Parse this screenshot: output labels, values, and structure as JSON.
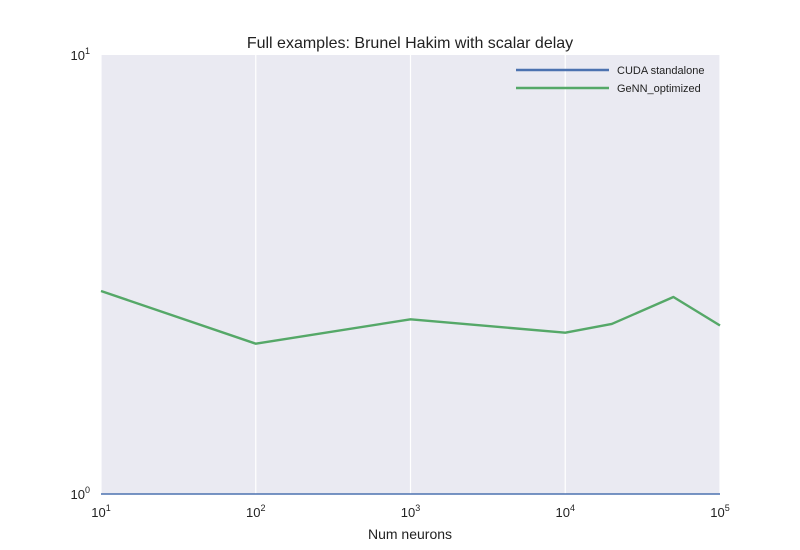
{
  "chart_data": {
    "type": "line",
    "title": "Full examples: Brunel Hakim with scalar delay",
    "xlabel": "Num neurons",
    "ylabel": "",
    "x_scale": "log",
    "y_scale": "log",
    "xlim": [
      10,
      100000
    ],
    "ylim": [
      1,
      10
    ],
    "x_ticks": [
      {
        "value": 10,
        "base": "10",
        "exp": "1"
      },
      {
        "value": 100,
        "base": "10",
        "exp": "2"
      },
      {
        "value": 1000,
        "base": "10",
        "exp": "3"
      },
      {
        "value": 10000,
        "base": "10",
        "exp": "4"
      },
      {
        "value": 100000,
        "base": "10",
        "exp": "5"
      }
    ],
    "y_ticks": [
      {
        "value": 1,
        "base": "10",
        "exp": "0"
      },
      {
        "value": 10,
        "base": "10",
        "exp": "1"
      }
    ],
    "grid": "vertical",
    "legend_position": "top-right",
    "series": [
      {
        "name": "CUDA standalone",
        "color": "#4c72b0",
        "x": [
          10,
          100,
          1000,
          10000,
          20000,
          50000,
          100000
        ],
        "y": [
          1.0,
          1.0,
          1.0,
          1.0,
          1.0,
          1.0,
          1.0
        ]
      },
      {
        "name": "GeNN_optimized",
        "color": "#55a868",
        "x": [
          10,
          100,
          1000,
          10000,
          20000,
          50000,
          100000
        ],
        "y": [
          2.9,
          2.2,
          2.5,
          2.33,
          2.44,
          2.81,
          2.42
        ]
      }
    ]
  }
}
